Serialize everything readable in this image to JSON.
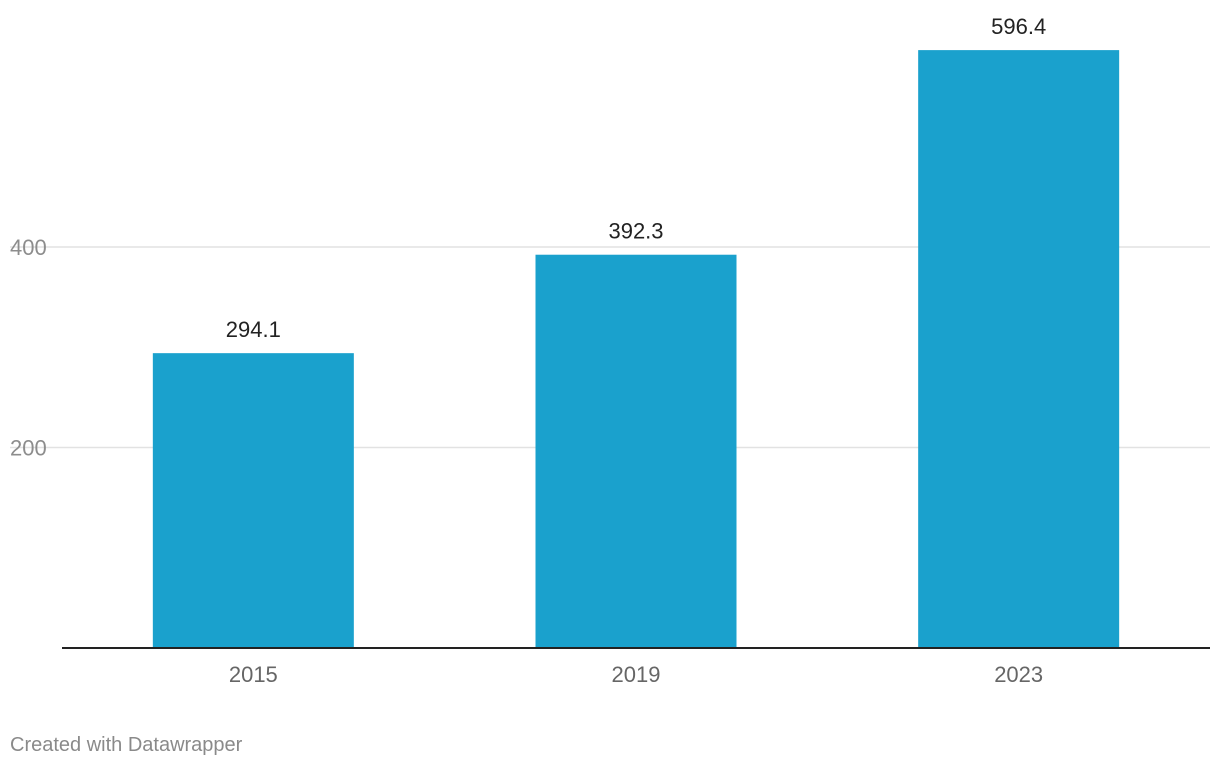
{
  "chart_data": {
    "type": "bar",
    "categories": [
      "2015",
      "2019",
      "2023"
    ],
    "values": [
      294.1,
      392.3,
      596.4
    ],
    "value_labels": [
      "294.1",
      "392.3",
      "596.4"
    ],
    "yticks": [
      200,
      400
    ],
    "ytick_labels": [
      "200",
      "400"
    ],
    "ylim": [
      0,
      600
    ],
    "grid": true,
    "title": "",
    "xlabel": "",
    "ylabel": "",
    "bar_color": "#1aa1cd",
    "gridline_color": "#e2e2e2",
    "baseline_color": "#222222",
    "tick_label_color": "#8d8d8d",
    "category_label_color": "#666666",
    "value_label_color": "#222222"
  },
  "footer": {
    "credit": "Created with Datawrapper"
  }
}
